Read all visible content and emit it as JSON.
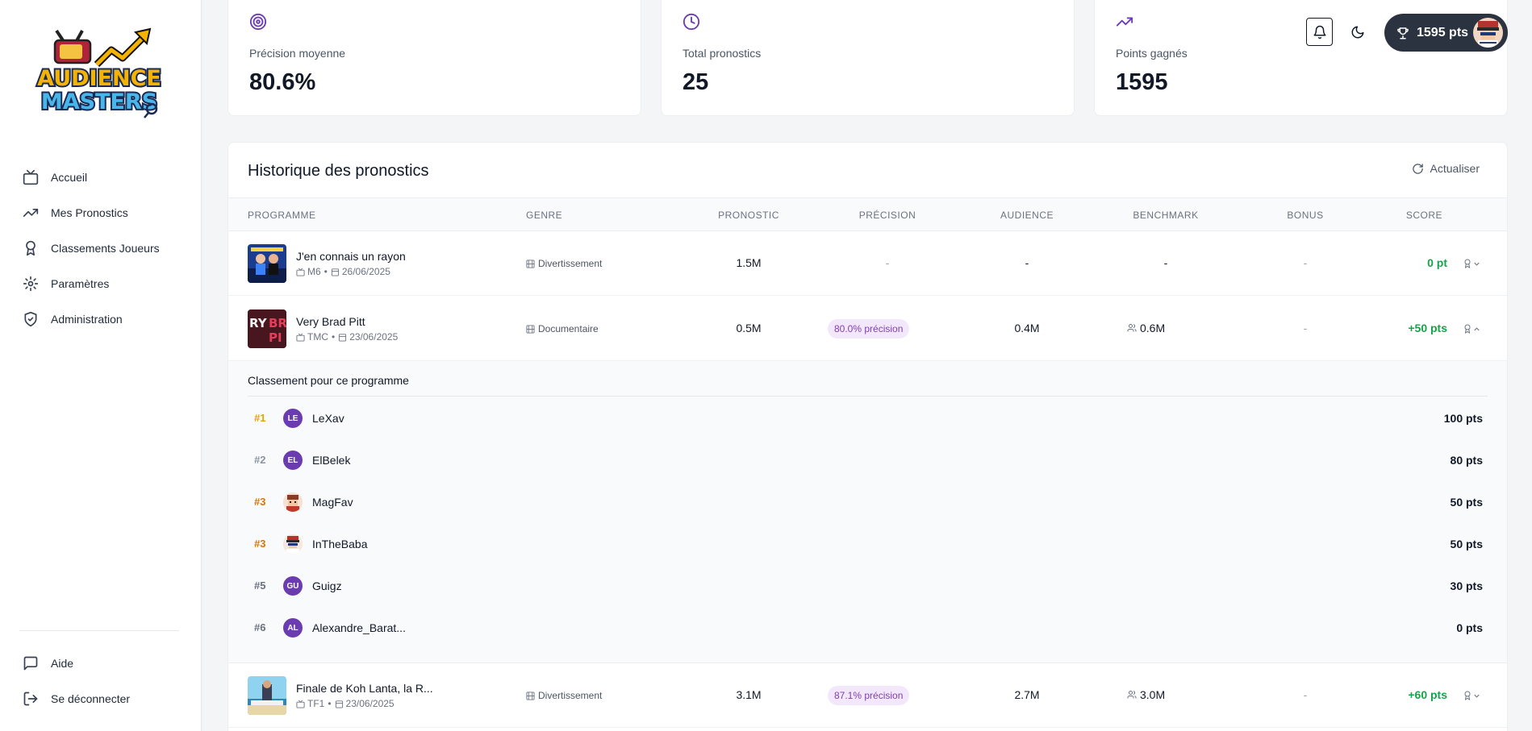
{
  "sidebar": {
    "logo_line1": "AUDIENCE",
    "logo_line2": "MASTERS",
    "items": [
      {
        "label": "Accueil",
        "icon": "tv-icon"
      },
      {
        "label": "Mes Pronostics",
        "icon": "trending-up-icon"
      },
      {
        "label": "Classements Joueurs",
        "icon": "award-icon"
      },
      {
        "label": "Paramètres",
        "icon": "gear-icon"
      },
      {
        "label": "Administration",
        "icon": "shield-check-icon"
      }
    ],
    "bottom": [
      {
        "label": "Aide",
        "icon": "message-icon"
      },
      {
        "label": "Se déconnecter",
        "icon": "logout-icon"
      }
    ]
  },
  "stats": [
    {
      "label": "Précision moyenne",
      "value": "80.6%",
      "icon": "target-icon"
    },
    {
      "label": "Total pronostics",
      "value": "25",
      "icon": "clock-icon"
    },
    {
      "label": "Points gagnés",
      "value": "1595",
      "icon": "trending-up-icon"
    }
  ],
  "header": {
    "points": "1595 pts"
  },
  "history": {
    "title": "Historique des pronostics",
    "refresh_label": "Actualiser",
    "columns": [
      "PROGRAMME",
      "GENRE",
      "PRONOSTIC",
      "PRÉCISION",
      "AUDIENCE",
      "BENCHMARK",
      "BONUS",
      "SCORE"
    ],
    "rows": [
      {
        "title": "J'en connais un rayon",
        "channel": "M6",
        "date": "26/06/2025",
        "genre": "Divertissement",
        "pronostic": "1.5M",
        "precision": "-",
        "audience": "-",
        "benchmark": "-",
        "bonus": "-",
        "score": "0 pt"
      },
      {
        "title": "Very Brad Pitt",
        "channel": "TMC",
        "date": "23/06/2025",
        "genre": "Documentaire",
        "pronostic": "0.5M",
        "precision": "80.0% précision",
        "audience": "0.4M",
        "benchmark": "0.6M",
        "bonus": "-",
        "score": "+50 pts"
      },
      {
        "title": "Finale de Koh Lanta, la R...",
        "channel": "TF1",
        "date": "23/06/2025",
        "genre": "Divertissement",
        "pronostic": "3.1M",
        "precision": "87.1% précision",
        "audience": "2.7M",
        "benchmark": "3.0M",
        "bonus": "-",
        "score": "+60 pts"
      }
    ],
    "ranking": {
      "title": "Classement pour ce programme",
      "entries": [
        {
          "rank": "#1",
          "initials": "LE",
          "name": "LeXav",
          "points": "100 pts",
          "color": "#e9a100"
        },
        {
          "rank": "#2",
          "initials": "EL",
          "name": "ElBelek",
          "points": "80 pts",
          "color": "#8b95a3"
        },
        {
          "rank": "#3",
          "initials": "",
          "name": "MagFav",
          "points": "50 pts",
          "color": "#d97706"
        },
        {
          "rank": "#3",
          "initials": "",
          "name": "InTheBaba",
          "points": "50 pts",
          "color": "#d97706"
        },
        {
          "rank": "#5",
          "initials": "GU",
          "name": "Guigz",
          "points": "30 pts",
          "color": "#6b7280"
        },
        {
          "rank": "#6",
          "initials": "AL",
          "name": "Alexandre_Barat...",
          "points": "0 pts",
          "color": "#6b7280"
        }
      ]
    }
  }
}
